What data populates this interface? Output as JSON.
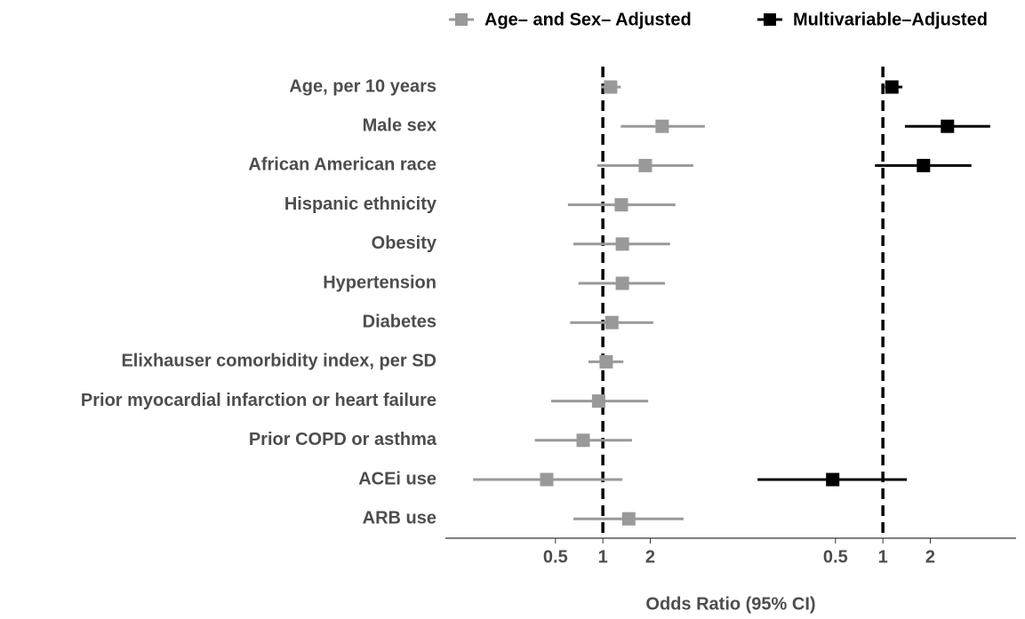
{
  "chart_data": {
    "type": "forest",
    "categories": [
      "Age, per 10 years",
      "Male sex",
      "African American race",
      "Hispanic ethnicity",
      "Obesity",
      "Hypertension",
      "Diabetes",
      "Elixhauser comorbidity index, per SD",
      "Prior myocardial infarction or heart failure",
      "Prior COPD or asthma",
      "ACEi use",
      "ARB use"
    ],
    "series": [
      {
        "name": "Age– and Sex– Adjusted",
        "color": "#999999",
        "values": [
          1.12,
          2.38,
          1.86,
          1.31,
          1.33,
          1.33,
          1.14,
          1.05,
          0.94,
          0.75,
          0.44,
          1.46
        ],
        "ci_low": [
          0.98,
          1.3,
          0.92,
          0.6,
          0.65,
          0.7,
          0.62,
          0.81,
          0.47,
          0.37,
          0.15,
          0.65
        ],
        "ci_high": [
          1.3,
          4.44,
          3.75,
          2.89,
          2.67,
          2.48,
          2.09,
          1.35,
          1.94,
          1.53,
          1.33,
          3.25
        ]
      },
      {
        "name": "Multivariable–Adjusted",
        "color": "#000000",
        "values": [
          1.14,
          2.57,
          1.81,
          null,
          null,
          null,
          null,
          null,
          null,
          null,
          0.48,
          null
        ],
        "ci_low": [
          1.03,
          1.38,
          0.89,
          null,
          null,
          null,
          null,
          null,
          null,
          null,
          0.16,
          null
        ],
        "ci_high": [
          1.33,
          4.8,
          3.65,
          null,
          null,
          null,
          null,
          null,
          null,
          null,
          1.42,
          null
        ]
      }
    ],
    "xlabel": "Odds Ratio (95% CI)",
    "xlim": [
      0.1,
      6
    ],
    "xticks": [
      0.5,
      1,
      2
    ],
    "log_x": true,
    "reference": 1,
    "legend": "top"
  }
}
